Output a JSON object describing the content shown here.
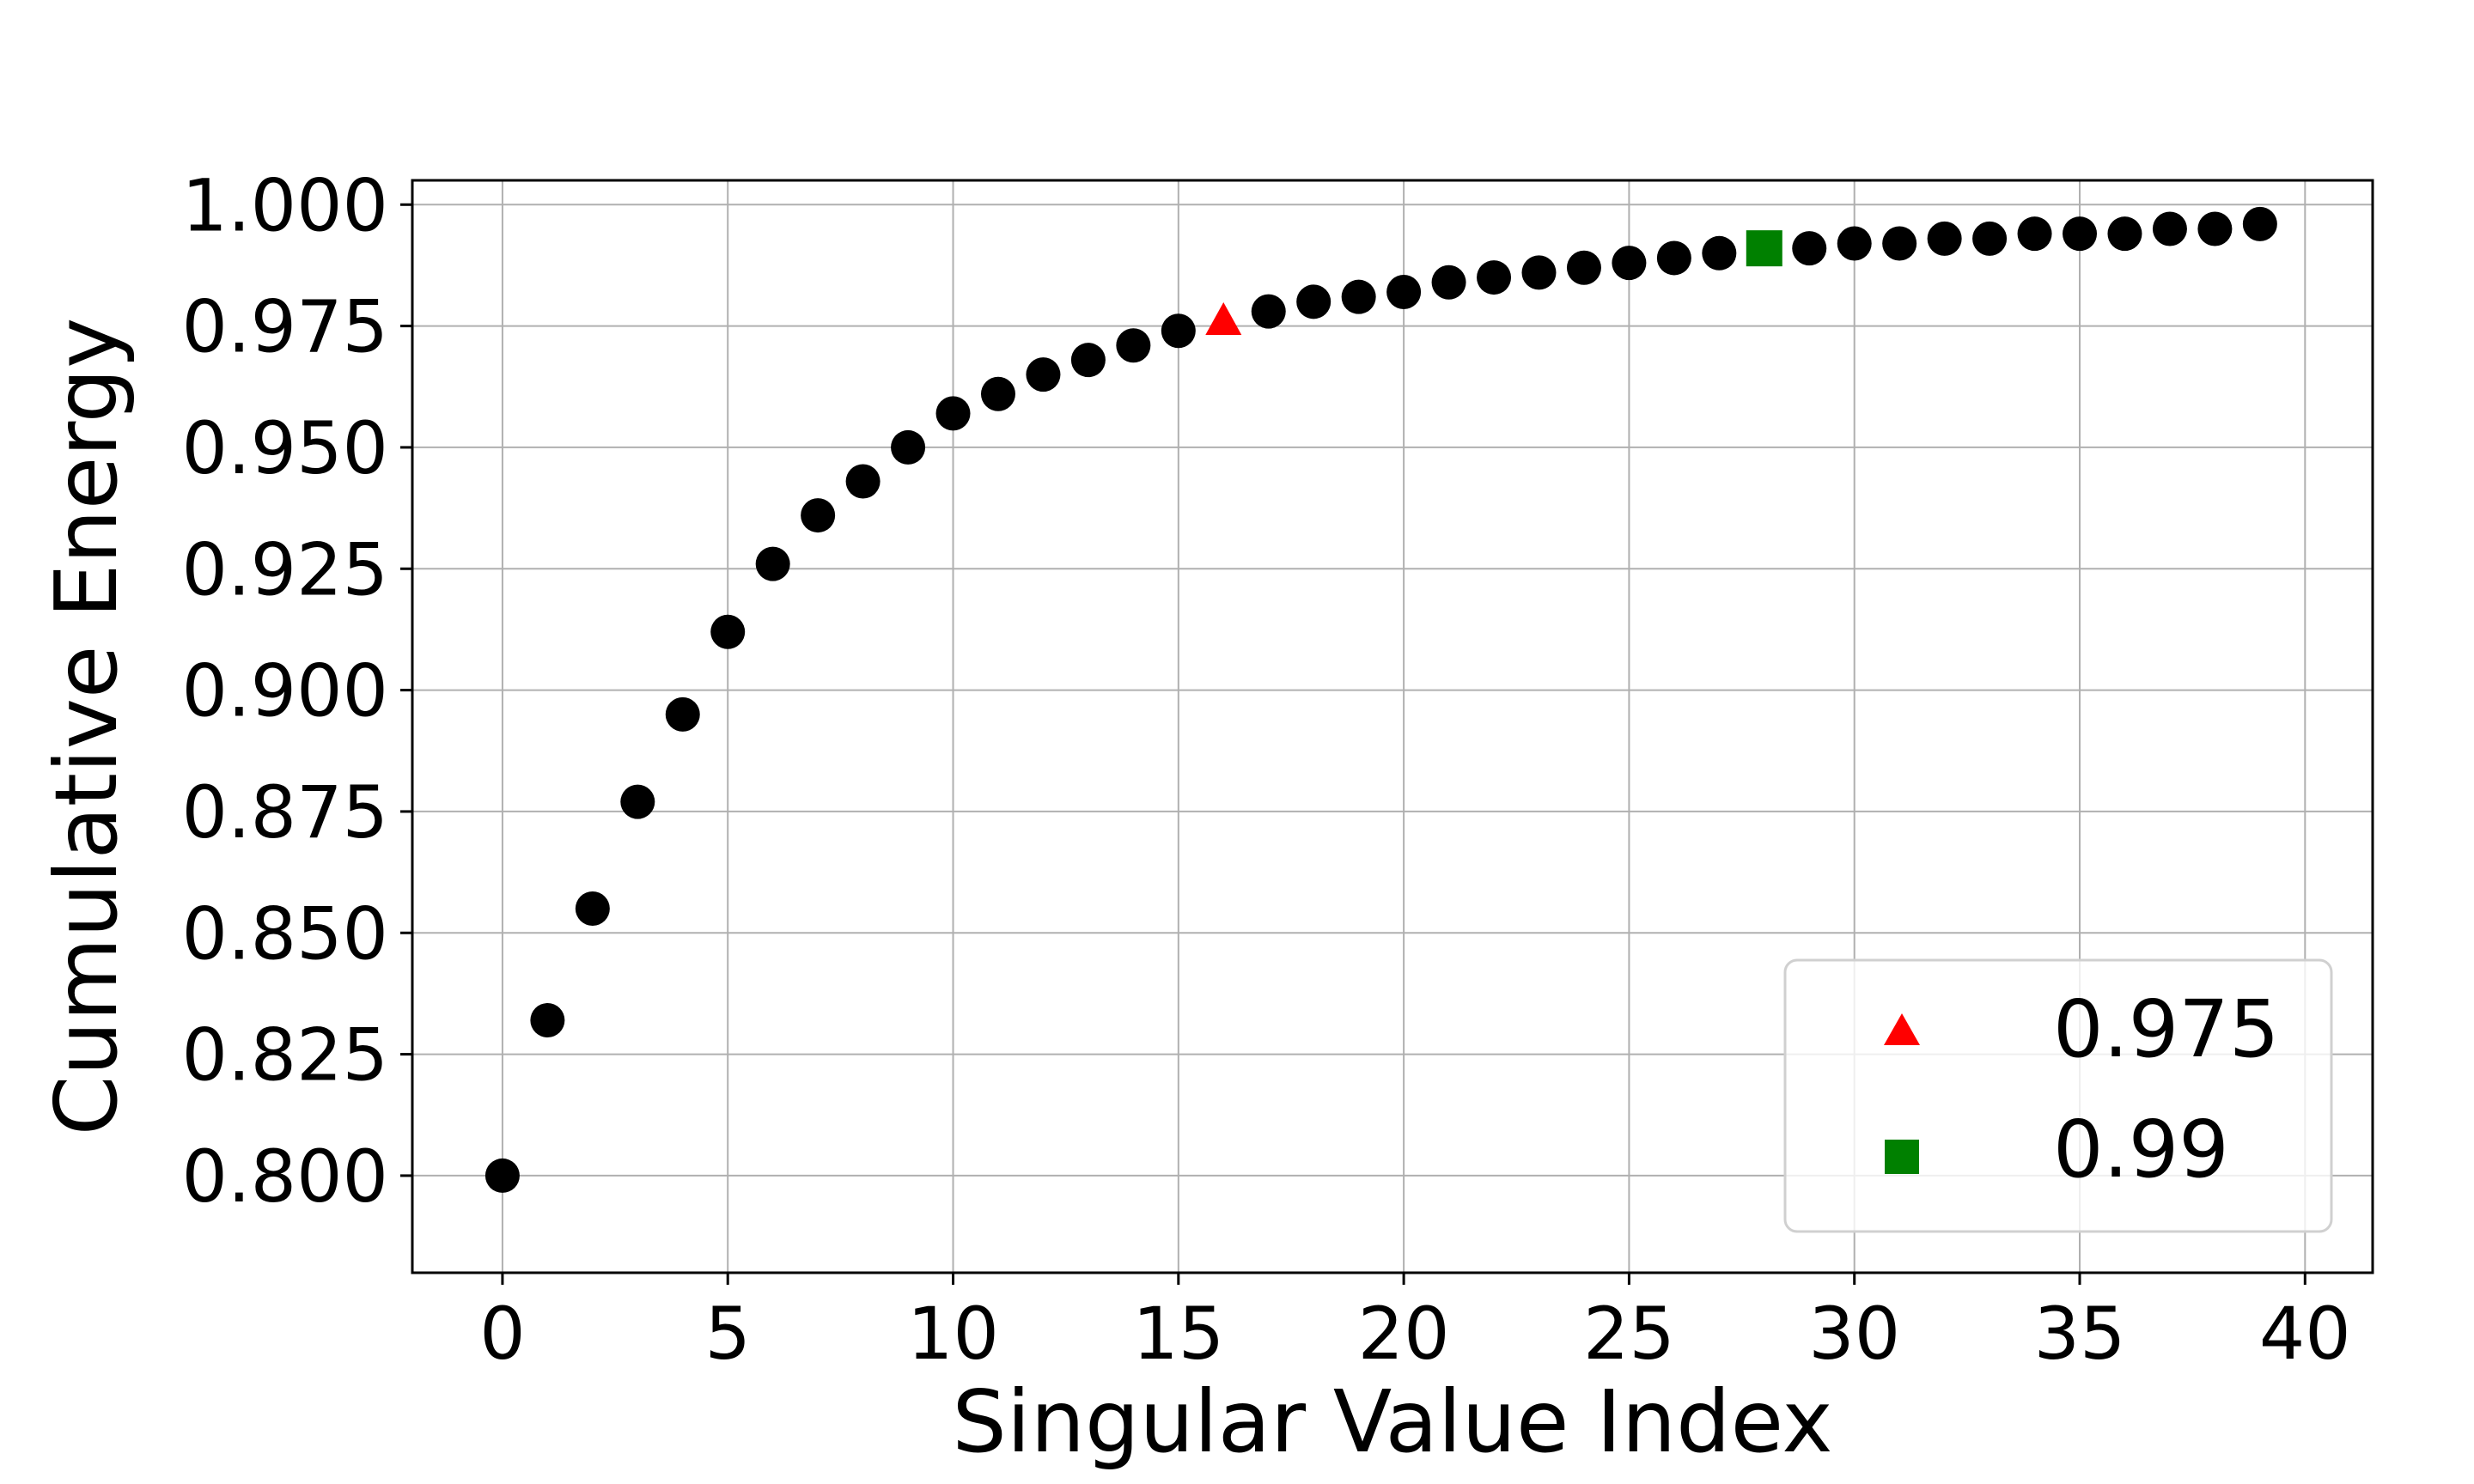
{
  "chart_data": {
    "type": "scatter",
    "xlabel": "Singular Value Index",
    "ylabel": "Cumulative Energy",
    "xlim": [
      -2,
      41.5
    ],
    "ylim": [
      0.78,
      1.005
    ],
    "grid": true,
    "legend_position": "lower-right",
    "x_ticks": [
      0,
      5,
      10,
      15,
      20,
      25,
      30,
      35,
      40
    ],
    "x_tick_labels": [
      "0",
      "5",
      "10",
      "15",
      "20",
      "25",
      "30",
      "35",
      "40"
    ],
    "y_ticks": [
      0.8,
      0.825,
      0.85,
      0.875,
      0.9,
      0.925,
      0.95,
      0.975,
      1.0
    ],
    "y_tick_labels": [
      "0.800",
      "0.825",
      "0.850",
      "0.875",
      "0.900",
      "0.925",
      "0.950",
      "0.975",
      "1.000"
    ],
    "series": [
      {
        "marker": "circle",
        "color": "#000000",
        "x": [
          0,
          1,
          2,
          3,
          4,
          5,
          6,
          7,
          8,
          9,
          10,
          11,
          12,
          13,
          14,
          15,
          17,
          18,
          19,
          20,
          21,
          22,
          23,
          24,
          25,
          26,
          27,
          29,
          30,
          31,
          32,
          33,
          34,
          35,
          36,
          37,
          38,
          39
        ],
        "y": [
          0.8,
          0.832,
          0.855,
          0.877,
          0.895,
          0.912,
          0.926,
          0.936,
          0.943,
          0.95,
          0.957,
          0.961,
          0.965,
          0.968,
          0.971,
          0.974,
          0.978,
          0.98,
          0.981,
          0.982,
          0.984,
          0.985,
          0.986,
          0.987,
          0.988,
          0.989,
          0.99,
          0.991,
          0.992,
          0.992,
          0.993,
          0.993,
          0.994,
          0.994,
          0.994,
          0.995,
          0.995,
          0.996
        ]
      },
      {
        "name": "0.975",
        "marker": "triangle",
        "color": "#ff0000",
        "x": [
          16
        ],
        "y": [
          0.976
        ]
      },
      {
        "name": "0.99",
        "marker": "square",
        "color": "#008000",
        "x": [
          28
        ],
        "y": [
          0.991
        ]
      }
    ]
  }
}
